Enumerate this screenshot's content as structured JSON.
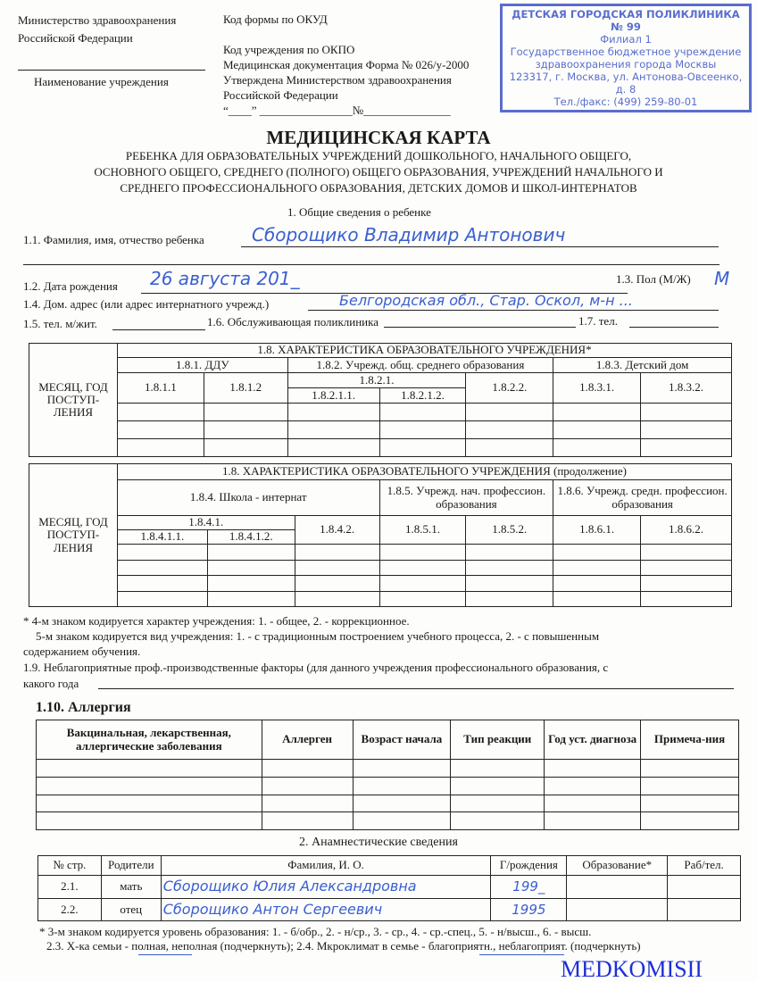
{
  "stamp": {
    "line1": "ДЕТСКАЯ ГОРОДСКАЯ ПОЛИКЛИНИКА № 99",
    "line2": "Филиал 1",
    "line3": "Государственное бюджетное учреждение",
    "line4": "здравоохранения города Москвы",
    "line5": "123317, г. Москва, ул. Антонова-Овсеенко, д. 8",
    "line6": "Тел./факс: (499) 259-80-01"
  },
  "header_left": {
    "ministry1": "Министерство здравоохранения",
    "ministry2": "Российской Федерации",
    "institution": "Наименование учреждения"
  },
  "header_right": {
    "okud": "Код формы по ОКУД",
    "okpo": "Код учреждения по ОКПО",
    "form": "Медицинская документация Форма № 026/у-2000",
    "approved1": "Утверждена Министерством здравоохранения",
    "approved2": "Российской Федерации",
    "date_no": "“____” ________________№_______________"
  },
  "title": "МЕДИЦИНСКАЯ КАРТА",
  "subtitle": [
    "РЕБЕНКА ДЛЯ ОБРАЗОВАТЕЛЬНЫХ УЧРЕЖДЕНИЙ ДОШКОЛЬНОГО, НАЧАЛЬНОГО ОБЩЕГО,",
    "ОСНОВНОГО ОБЩЕГО, СРЕДНЕГО (ПОЛНОГО) ОБЩЕГО ОБРАЗОВАНИЯ, УЧРЕЖДЕНИЙ НАЧАЛЬНОГО И",
    "СРЕДНЕГО ПРОФЕССИОНАЛЬНОГО ОБРАЗОВАНИЯ, ДЕТСКИХ ДОМОВ И ШКОЛ-ИНТЕРНАТОВ"
  ],
  "section1": {
    "title": "1. Общие сведения о ребенке",
    "fio_label": "1.1. Фамилия, имя, отчество ребенка",
    "fio_value": "Сборощико Владимир Антонович",
    "dob_label": "1.2. Дата рождения",
    "dob_value": "26 августа 201_",
    "sex_label": "1.3. Пол (М/Ж)",
    "sex_value": "М",
    "address_label": "1.4. Дом. адрес (или адрес интернатного учрежд.)",
    "address_value": "Белгородская обл., Стар. Оскол, м-н ...",
    "phone_label": "1.5. тел. м/жит.",
    "clinic_label": "1.6. Обслуживающая поликлиника",
    "tel_label": "1.7. тел."
  },
  "table1": {
    "header": "1.8. ХАРАКТЕРИСТИКА ОБРАЗОВАТЕЛЬНОГО УЧРЕЖДЕНИЯ*",
    "side": "МЕСЯЦ, ГОД ПОСТУП-ЛЕНИЯ",
    "groups": [
      "1.8.1. ДДУ",
      "1.8.2. Учрежд. общ. среднего образования",
      "1.8.3. Детский дом"
    ],
    "c": [
      "1.8.1.1",
      "1.8.1.2",
      "1.8.2.1.",
      "1.8.2.1.1.",
      "1.8.2.1.2.",
      "1.8.2.2.",
      "1.8.3.1.",
      "1.8.3.2."
    ]
  },
  "table2": {
    "header": "1.8. ХАРАКТЕРИСТИКА ОБРАЗОВАТЕЛЬНОГО УЧРЕЖДЕНИЯ (продолжение)",
    "side": "МЕСЯЦ, ГОД ПОСТУП-ЛЕНИЯ",
    "groups": [
      "1.8.4. Школа - интернат",
      "1.8.5. Учрежд. нач. профессион. образования",
      "1.8.6. Учрежд. средн. профессион. образования"
    ],
    "c": [
      "1.8.4.1.",
      "1.8.4.1.1.",
      "1.8.4.1.2.",
      "1.8.4.2.",
      "1.8.5.1.",
      "1.8.5.2.",
      "1.8.6.1.",
      "1.8.6.2."
    ]
  },
  "notes": {
    "n1": "* 4-м знаком кодируется характер учреждения: 1. - общее, 2. - коррекционное.",
    "n2": "5-м знаком кодируется вид учреждения: 1. - с традиционным построением учебного процесса, 2. - с повышенным",
    "n3": "содержанием обучения.",
    "n4": "1.9. Неблагоприятные проф.-производственные факторы (для данного учреждения профессионального образования, с",
    "n5": "какого года"
  },
  "allergy": {
    "title": "1.10. Аллергия",
    "headers": [
      "Вакцинальная, лекарственная, аллергические заболевания",
      "Аллерген",
      "Возраст начала",
      "Тип реакции",
      "Год уст. диагноза",
      "Примеча-ния"
    ]
  },
  "section2": {
    "title": "2. Анамнестические сведения",
    "headers": [
      "№ стр.",
      "Родители",
      "Фамилия, И. О.",
      "Г/рождения",
      "Образование*",
      "Раб/тел."
    ],
    "rows": [
      {
        "no": "2.1.",
        "parent": "мать",
        "name": "Сборощико Юлия Александровна",
        "year": "199_"
      },
      {
        "no": "2.2.",
        "parent": "отец",
        "name": "Сборощико Антон Сергеевич",
        "year": "1995"
      }
    ],
    "note1": "* 3-м знаком кодируется уровень образования: 1. - б/обр., 2. - н/ср., 3. - ср., 4. - ср.-спец., 5. - н/высш., 6. - высш.",
    "note2": "2.3. Х-ка семьи - полная, неполная (подчеркнуть); 2.4. Мкроклимат в семье - благоприятн., неблагоприят. (подчеркнуть)"
  },
  "watermark": "MEDKOMISII"
}
